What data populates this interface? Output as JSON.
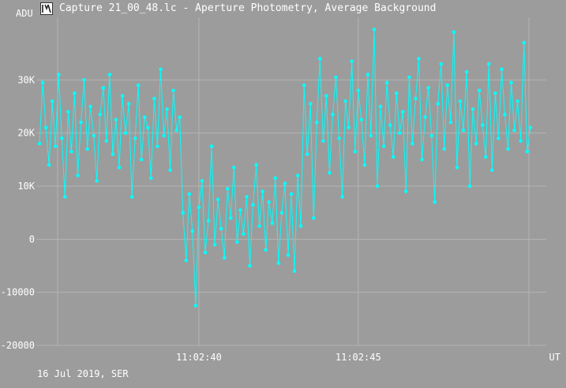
{
  "window": {
    "title": "Capture 21_00_48.lc - Aperture Photometry, Average Background",
    "icon": "graph-app-icon"
  },
  "footer": {
    "date_text": "16 Jul 2019, SER"
  },
  "colors": {
    "background": "#9c9c9c",
    "grid": "#b4b4b4",
    "series": "#00ffff",
    "text": "#ffffff"
  },
  "chart_data": {
    "type": "line",
    "title": "",
    "ylabel": "ADU",
    "xlabel": "UT",
    "ylim": [
      -20000,
      40000
    ],
    "xlim": [
      "11:02:34.9",
      "11:02:50.9"
    ],
    "y_ticks": [
      {
        "value": 30000,
        "label": "30K"
      },
      {
        "value": 20000,
        "label": "20K"
      },
      {
        "value": 10000,
        "label": "10K"
      },
      {
        "value": 0,
        "label": "0"
      },
      {
        "value": -10000,
        "label": "-10000"
      },
      {
        "value": -20000,
        "label": "-20000"
      }
    ],
    "x_ticks": [
      {
        "value": "11:02:40",
        "label": "11:02:40"
      },
      {
        "value": "11:02:45",
        "label": "11:02:45"
      }
    ],
    "grid": true,
    "marker": "circle",
    "series": [
      {
        "values": [
          {
            "x": "11:02:35.0",
            "y": 18000
          },
          {
            "x": "11:02:35.1",
            "y": 29500
          },
          {
            "x": "11:02:35.2",
            "y": 21000
          },
          {
            "x": "11:02:35.3",
            "y": 14000
          },
          {
            "x": "11:02:35.4",
            "y": 26000
          },
          {
            "x": "11:02:35.5",
            "y": 17500
          },
          {
            "x": "11:02:35.6",
            "y": 31000
          },
          {
            "x": "11:02:35.7",
            "y": 19000
          },
          {
            "x": "11:02:35.8",
            "y": 8000
          },
          {
            "x": "11:02:35.9",
            "y": 24000
          },
          {
            "x": "11:02:36.0",
            "y": 16500
          },
          {
            "x": "11:02:36.1",
            "y": 27500
          },
          {
            "x": "11:02:36.2",
            "y": 12000
          },
          {
            "x": "11:02:36.3",
            "y": 22000
          },
          {
            "x": "11:02:36.4",
            "y": 30000
          },
          {
            "x": "11:02:36.5",
            "y": 17000
          },
          {
            "x": "11:02:36.6",
            "y": 25000
          },
          {
            "x": "11:02:36.7",
            "y": 19500
          },
          {
            "x": "11:02:36.8",
            "y": 11000
          },
          {
            "x": "11:02:36.9",
            "y": 23500
          },
          {
            "x": "11:02:37.0",
            "y": 28500
          },
          {
            "x": "11:02:37.1",
            "y": 18500
          },
          {
            "x": "11:02:37.2",
            "y": 31000
          },
          {
            "x": "11:02:37.3",
            "y": 16000
          },
          {
            "x": "11:02:37.4",
            "y": 22500
          },
          {
            "x": "11:02:37.5",
            "y": 13500
          },
          {
            "x": "11:02:37.6",
            "y": 27000
          },
          {
            "x": "11:02:37.7",
            "y": 20000
          },
          {
            "x": "11:02:37.8",
            "y": 25500
          },
          {
            "x": "11:02:37.9",
            "y": 8000
          },
          {
            "x": "11:02:38.0",
            "y": 19000
          },
          {
            "x": "11:02:38.1",
            "y": 29000
          },
          {
            "x": "11:02:38.2",
            "y": 15000
          },
          {
            "x": "11:02:38.3",
            "y": 23000
          },
          {
            "x": "11:02:38.4",
            "y": 21000
          },
          {
            "x": "11:02:38.5",
            "y": 11500
          },
          {
            "x": "11:02:38.6",
            "y": 26500
          },
          {
            "x": "11:02:38.7",
            "y": 17500
          },
          {
            "x": "11:02:38.8",
            "y": 32000
          },
          {
            "x": "11:02:38.9",
            "y": 19500
          },
          {
            "x": "11:02:39.0",
            "y": 24500
          },
          {
            "x": "11:02:39.1",
            "y": 13000
          },
          {
            "x": "11:02:39.2",
            "y": 28000
          },
          {
            "x": "11:02:39.3",
            "y": 20500
          },
          {
            "x": "11:02:39.4",
            "y": 23000
          },
          {
            "x": "11:02:39.5",
            "y": 5000
          },
          {
            "x": "11:02:39.6",
            "y": -4000
          },
          {
            "x": "11:02:39.7",
            "y": 8500
          },
          {
            "x": "11:02:39.8",
            "y": 1500
          },
          {
            "x": "11:02:39.9",
            "y": -12500
          },
          {
            "x": "11:02:40.0",
            "y": 6000
          },
          {
            "x": "11:02:40.1",
            "y": 11000
          },
          {
            "x": "11:02:40.2",
            "y": -2500
          },
          {
            "x": "11:02:40.3",
            "y": 3500
          },
          {
            "x": "11:02:40.4",
            "y": 17500
          },
          {
            "x": "11:02:40.5",
            "y": -1000
          },
          {
            "x": "11:02:40.6",
            "y": 7500
          },
          {
            "x": "11:02:40.7",
            "y": 2000
          },
          {
            "x": "11:02:40.8",
            "y": -3500
          },
          {
            "x": "11:02:40.9",
            "y": 9500
          },
          {
            "x": "11:02:41.0",
            "y": 4000
          },
          {
            "x": "11:02:41.1",
            "y": 13500
          },
          {
            "x": "11:02:41.2",
            "y": -500
          },
          {
            "x": "11:02:41.3",
            "y": 5500
          },
          {
            "x": "11:02:41.4",
            "y": 1000
          },
          {
            "x": "11:02:41.5",
            "y": 8000
          },
          {
            "x": "11:02:41.6",
            "y": -5000
          },
          {
            "x": "11:02:41.7",
            "y": 6500
          },
          {
            "x": "11:02:41.8",
            "y": 14000
          },
          {
            "x": "11:02:41.9",
            "y": 2500
          },
          {
            "x": "11:02:42.0",
            "y": 9000
          },
          {
            "x": "11:02:42.1",
            "y": -2000
          },
          {
            "x": "11:02:42.2",
            "y": 7000
          },
          {
            "x": "11:02:42.3",
            "y": 3000
          },
          {
            "x": "11:02:42.4",
            "y": 11500
          },
          {
            "x": "11:02:42.5",
            "y": -4500
          },
          {
            "x": "11:02:42.6",
            "y": 5000
          },
          {
            "x": "11:02:42.7",
            "y": 10500
          },
          {
            "x": "11:02:42.8",
            "y": -3000
          },
          {
            "x": "11:02:42.9",
            "y": 8500
          },
          {
            "x": "11:02:43.0",
            "y": -6000
          },
          {
            "x": "11:02:43.1",
            "y": 12000
          },
          {
            "x": "11:02:43.2",
            "y": 2500
          },
          {
            "x": "11:02:43.3",
            "y": 29000
          },
          {
            "x": "11:02:43.4",
            "y": 16000
          },
          {
            "x": "11:02:43.5",
            "y": 25500
          },
          {
            "x": "11:02:43.6",
            "y": 4000
          },
          {
            "x": "11:02:43.7",
            "y": 22000
          },
          {
            "x": "11:02:43.8",
            "y": 34000
          },
          {
            "x": "11:02:43.9",
            "y": 18500
          },
          {
            "x": "11:02:44.0",
            "y": 27000
          },
          {
            "x": "11:02:44.1",
            "y": 12500
          },
          {
            "x": "11:02:44.2",
            "y": 23500
          },
          {
            "x": "11:02:44.3",
            "y": 30500
          },
          {
            "x": "11:02:44.4",
            "y": 19000
          },
          {
            "x": "11:02:44.5",
            "y": 8000
          },
          {
            "x": "11:02:44.6",
            "y": 26000
          },
          {
            "x": "11:02:44.7",
            "y": 21000
          },
          {
            "x": "11:02:44.8",
            "y": 33500
          },
          {
            "x": "11:02:44.9",
            "y": 16500
          },
          {
            "x": "11:02:45.0",
            "y": 28000
          },
          {
            "x": "11:02:45.1",
            "y": 22500
          },
          {
            "x": "11:02:45.2",
            "y": 14000
          },
          {
            "x": "11:02:45.3",
            "y": 31000
          },
          {
            "x": "11:02:45.4",
            "y": 19500
          },
          {
            "x": "11:02:45.5",
            "y": 39500
          },
          {
            "x": "11:02:45.6",
            "y": 10000
          },
          {
            "x": "11:02:45.7",
            "y": 25000
          },
          {
            "x": "11:02:45.8",
            "y": 17500
          },
          {
            "x": "11:02:45.9",
            "y": 29500
          },
          {
            "x": "11:02:46.0",
            "y": 21500
          },
          {
            "x": "11:02:46.1",
            "y": 15500
          },
          {
            "x": "11:02:46.2",
            "y": 27500
          },
          {
            "x": "11:02:46.3",
            "y": 20000
          },
          {
            "x": "11:02:46.4",
            "y": 24000
          },
          {
            "x": "11:02:46.5",
            "y": 9000
          },
          {
            "x": "11:02:46.6",
            "y": 30500
          },
          {
            "x": "11:02:46.7",
            "y": 18000
          },
          {
            "x": "11:02:46.8",
            "y": 26500
          },
          {
            "x": "11:02:46.9",
            "y": 34000
          },
          {
            "x": "11:02:47.0",
            "y": 15000
          },
          {
            "x": "11:02:47.1",
            "y": 23000
          },
          {
            "x": "11:02:47.2",
            "y": 28500
          },
          {
            "x": "11:02:47.3",
            "y": 19500
          },
          {
            "x": "11:02:47.4",
            "y": 7000
          },
          {
            "x": "11:02:47.5",
            "y": 25500
          },
          {
            "x": "11:02:47.6",
            "y": 33000
          },
          {
            "x": "11:02:47.7",
            "y": 17000
          },
          {
            "x": "11:02:47.8",
            "y": 29000
          },
          {
            "x": "11:02:47.9",
            "y": 22000
          },
          {
            "x": "11:02:48.0",
            "y": 39000
          },
          {
            "x": "11:02:48.1",
            "y": 13500
          },
          {
            "x": "11:02:48.2",
            "y": 26000
          },
          {
            "x": "11:02:48.3",
            "y": 20500
          },
          {
            "x": "11:02:48.4",
            "y": 31500
          },
          {
            "x": "11:02:48.5",
            "y": 10000
          },
          {
            "x": "11:02:48.6",
            "y": 24500
          },
          {
            "x": "11:02:48.7",
            "y": 18000
          },
          {
            "x": "11:02:48.8",
            "y": 28000
          },
          {
            "x": "11:02:48.9",
            "y": 21500
          },
          {
            "x": "11:02:49.0",
            "y": 15500
          },
          {
            "x": "11:02:49.1",
            "y": 33000
          },
          {
            "x": "11:02:49.2",
            "y": 13000
          },
          {
            "x": "11:02:49.3",
            "y": 27500
          },
          {
            "x": "11:02:49.4",
            "y": 19000
          },
          {
            "x": "11:02:49.5",
            "y": 32000
          },
          {
            "x": "11:02:49.6",
            "y": 23500
          },
          {
            "x": "11:02:49.7",
            "y": 17000
          },
          {
            "x": "11:02:49.8",
            "y": 29500
          },
          {
            "x": "11:02:49.9",
            "y": 20500
          },
          {
            "x": "11:02:50.0",
            "y": 26000
          },
          {
            "x": "11:02:50.1",
            "y": 18500
          },
          {
            "x": "11:02:50.2",
            "y": 37000
          },
          {
            "x": "11:02:50.3",
            "y": 16500
          },
          {
            "x": "11:02:50.4",
            "y": 21000
          }
        ]
      }
    ]
  }
}
